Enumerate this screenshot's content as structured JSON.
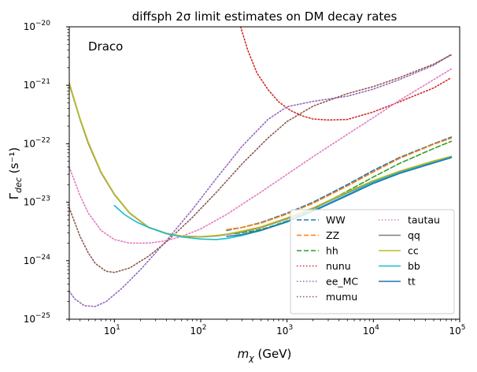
{
  "chart_data": {
    "type": "line",
    "title": "diffsph 2σ limit estimates on DM decay rates",
    "annotation": "Draco",
    "xlabel": "m_χ (GeV)",
    "ylabel": "Γ_dec (s⁻¹)",
    "xscale": "log",
    "yscale": "log",
    "xlim": [
      3,
      100000
    ],
    "ylim": [
      1e-25,
      1e-20
    ],
    "x_ticks": [
      {
        "value": 10,
        "base": "10",
        "exp": "1"
      },
      {
        "value": 100,
        "base": "10",
        "exp": "2"
      },
      {
        "value": 1000,
        "base": "10",
        "exp": "3"
      },
      {
        "value": 10000,
        "base": "10",
        "exp": "4"
      },
      {
        "value": 100000,
        "base": "10",
        "exp": "5"
      }
    ],
    "y_ticks": [
      {
        "value": 1e-25,
        "base": "10",
        "exp": "−25"
      },
      {
        "value": 1e-24,
        "base": "10",
        "exp": "−24"
      },
      {
        "value": 1e-23,
        "base": "10",
        "exp": "−23"
      },
      {
        "value": 1e-22,
        "base": "10",
        "exp": "−22"
      },
      {
        "value": 1e-21,
        "base": "10",
        "exp": "−21"
      },
      {
        "value": 1e-20,
        "base": "10",
        "exp": "−20"
      }
    ],
    "legend_location": "lower-right",
    "series": [
      {
        "name": "WW",
        "color": "#1f77b4",
        "style": "dashed",
        "x": [
          200,
          300,
          500,
          1000,
          2000,
          5000,
          10000,
          20000,
          50000,
          80000
        ],
        "y": [
          3.3e-24,
          3.7e-24,
          4.5e-24,
          6.5e-24,
          1e-23,
          2e-23,
          3.5e-23,
          5.8e-23,
          1e-22,
          1.3e-22
        ]
      },
      {
        "name": "ZZ",
        "color": "#ff7f0e",
        "style": "dashed",
        "x": [
          200,
          300,
          500,
          1000,
          2000,
          5000,
          10000,
          20000,
          50000,
          80000
        ],
        "y": [
          3.4e-24,
          3.7e-24,
          4.4e-24,
          6.3e-24,
          9.6e-24,
          1.9e-23,
          3.3e-23,
          5.6e-23,
          9.8e-23,
          1.25e-22
        ]
      },
      {
        "name": "hh",
        "color": "#2ca02c",
        "style": "dashed",
        "x": [
          250,
          400,
          600,
          1000,
          2000,
          5000,
          10000,
          20000,
          50000,
          80000
        ],
        "y": [
          2.9e-24,
          3.2e-24,
          3.7e-24,
          4.8e-24,
          7.6e-24,
          1.55e-23,
          2.7e-23,
          4.6e-23,
          8.3e-23,
          1.1e-22
        ]
      },
      {
        "name": "nunu",
        "color": "#d62728",
        "style": "dotted",
        "x": [
          290,
          350,
          450,
          600,
          800,
          1100,
          1500,
          2000,
          3000,
          5000,
          10000,
          20000,
          50000,
          80000
        ],
        "y": [
          1e-20,
          4e-21,
          1.6e-21,
          8.5e-22,
          5.2e-22,
          3.7e-22,
          3e-22,
          2.65e-22,
          2.55e-22,
          2.6e-22,
          3.5e-22,
          5.2e-22,
          9e-22,
          1.35e-21
        ]
      },
      {
        "name": "ee_MC",
        "color": "#9467bd",
        "style": "dotted",
        "x": [
          3,
          3.5,
          4.5,
          6,
          8,
          12,
          20,
          40,
          80,
          150,
          300,
          600,
          1000,
          2000,
          5000,
          10000,
          20000,
          50000,
          80000
        ],
        "y": [
          3e-25,
          2.2e-25,
          1.7e-25,
          1.65e-25,
          2e-25,
          3.3e-25,
          7e-25,
          2.2e-24,
          7.5e-24,
          2.5e-23,
          9e-23,
          2.6e-22,
          4.3e-22,
          5.3e-22,
          6.5e-22,
          8.6e-22,
          1.25e-21,
          2.2e-21,
          3.4e-21
        ]
      },
      {
        "name": "mumu",
        "color": "#8c564b",
        "style": "dotted",
        "x": [
          3,
          4,
          5,
          6,
          8,
          10,
          15,
          25,
          40,
          80,
          150,
          300,
          600,
          1000,
          2000,
          5000,
          10000,
          20000,
          50000,
          80000
        ],
        "y": [
          8e-24,
          2.6e-24,
          1.35e-24,
          9e-25,
          6.6e-25,
          6.3e-25,
          7.5e-25,
          1.2e-24,
          2.1e-24,
          5.5e-24,
          1.45e-23,
          4.5e-23,
          1.25e-22,
          2.4e-22,
          4.4e-22,
          7.2e-22,
          9.5e-22,
          1.35e-21,
          2.3e-21,
          3.3e-21
        ]
      },
      {
        "name": "tautau",
        "color": "#e377c2",
        "style": "dotted",
        "x": [
          3,
          4,
          5,
          7,
          10,
          15,
          25,
          40,
          60,
          100,
          200,
          500,
          1000,
          2000,
          5000,
          10000,
          20000,
          50000,
          80000
        ],
        "y": [
          4e-23,
          1.3e-23,
          6.5e-24,
          3.3e-24,
          2.3e-24,
          2e-24,
          2e-24,
          2.2e-24,
          2.6e-24,
          3.5e-24,
          6.2e-24,
          1.5e-23,
          3e-23,
          6e-23,
          1.45e-22,
          2.8e-22,
          5.5e-22,
          1.25e-21,
          1.9e-21
        ]
      },
      {
        "name": "qq",
        "color": "#7f7f7f",
        "style": "solid",
        "x": [
          3,
          4,
          5,
          7,
          10,
          15,
          25,
          40,
          60,
          100,
          150,
          200,
          300,
          500,
          1000,
          2000,
          5000,
          10000,
          20000,
          50000,
          80000
        ],
        "y": [
          1.05e-21,
          2.6e-22,
          1e-22,
          3.2e-23,
          1.35e-23,
          6.5e-24,
          3.7e-24,
          2.9e-24,
          2.6e-24,
          2.55e-24,
          2.65e-24,
          2.8e-24,
          3.1e-24,
          3.7e-24,
          5.2e-24,
          7.8e-24,
          1.45e-23,
          2.3e-23,
          3.3e-23,
          5e-23,
          6e-23
        ]
      },
      {
        "name": "cc",
        "color": "#bcbd22",
        "style": "solid",
        "x": [
          3,
          4,
          5,
          7,
          10,
          15,
          25,
          40,
          60,
          100,
          150,
          200,
          300,
          500,
          1000,
          2000,
          5000,
          10000,
          20000,
          50000,
          80000
        ],
        "y": [
          1.1e-21,
          2.7e-22,
          1.05e-22,
          3.3e-23,
          1.38e-23,
          6.6e-24,
          3.75e-24,
          2.95e-24,
          2.65e-24,
          2.58e-24,
          2.7e-24,
          2.85e-24,
          3.2e-24,
          3.8e-24,
          5.4e-24,
          8e-24,
          1.5e-23,
          2.35e-23,
          3.4e-23,
          5.1e-23,
          6.1e-23
        ]
      },
      {
        "name": "bb",
        "color": "#17becf",
        "style": "solid",
        "x": [
          10,
          13,
          18,
          25,
          40,
          60,
          100,
          150,
          200,
          300,
          500,
          1000,
          2000,
          5000,
          10000,
          20000,
          50000,
          80000
        ],
        "y": [
          8.8e-24,
          6.2e-24,
          4.6e-24,
          3.7e-24,
          2.9e-24,
          2.55e-24,
          2.35e-24,
          2.3e-24,
          2.4e-24,
          2.7e-24,
          3.3e-24,
          4.7e-24,
          7.2e-24,
          1.35e-23,
          2.2e-23,
          3.2e-23,
          4.8e-23,
          5.9e-23
        ]
      },
      {
        "name": "tt",
        "color": "#1f77b4",
        "style": "solid",
        "x": [
          200,
          300,
          500,
          1000,
          2000,
          5000,
          10000,
          20000,
          50000,
          80000
        ],
        "y": [
          2.6e-24,
          2.8e-24,
          3.3e-24,
          4.6e-24,
          7e-24,
          1.3e-23,
          2.1e-23,
          3.1e-23,
          4.7e-23,
          5.8e-23
        ]
      }
    ]
  }
}
